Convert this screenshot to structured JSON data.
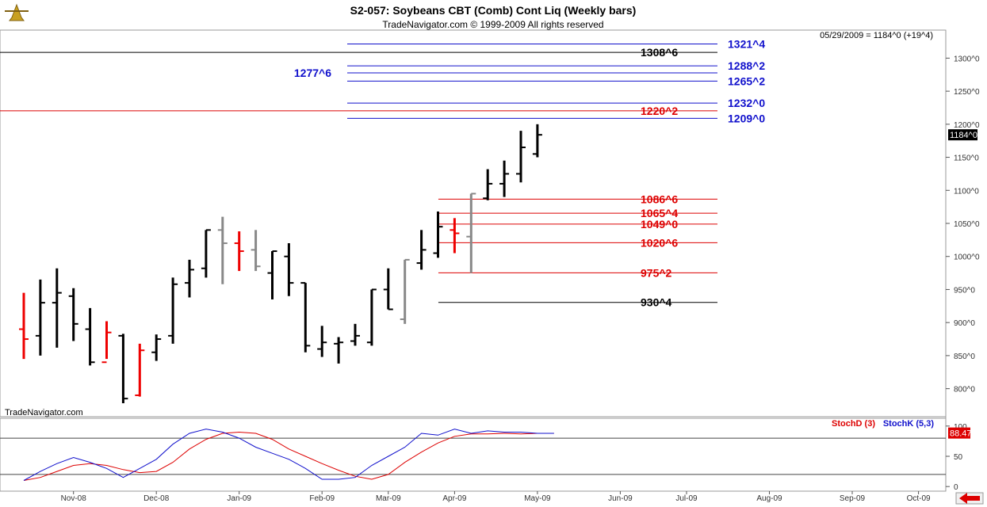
{
  "header": {
    "title": "S2-057:  Soybeans CBT (Comb) Cont Liq  (Weekly bars)",
    "subtitle": "TradeNavigator.com © 1999-2009 All rights reserved",
    "readout": "05/29/2009 = 1184^0 (+19^4)",
    "watermark": "TradeNavigator.com"
  },
  "chart_data": [
    {
      "type": "ohlc",
      "ylim": [
        760,
        1340
      ],
      "yticks": [
        {
          "v": 800,
          "label": "800^0"
        },
        {
          "v": 850,
          "label": "850^0"
        },
        {
          "v": 900,
          "label": "900^0"
        },
        {
          "v": 950,
          "label": "950^0"
        },
        {
          "v": 1000,
          "label": "1000^0"
        },
        {
          "v": 1050,
          "label": "1050^0"
        },
        {
          "v": 1100,
          "label": "1100^0"
        },
        {
          "v": 1150,
          "label": "1150^0"
        },
        {
          "v": 1200,
          "label": "1200^0"
        },
        {
          "v": 1250,
          "label": "1250^0"
        },
        {
          "v": 1300,
          "label": "1300^0"
        }
      ],
      "last_price": {
        "value": 1184,
        "label": "1184^0"
      },
      "xticks": [
        {
          "i": 3,
          "label": "Nov-08"
        },
        {
          "i": 8,
          "label": "Dec-08"
        },
        {
          "i": 13,
          "label": "Jan-09"
        },
        {
          "i": 18,
          "label": "Feb-09"
        },
        {
          "i": 22,
          "label": "Mar-09"
        },
        {
          "i": 26,
          "label": "Apr-09"
        },
        {
          "i": 31,
          "label": "May-09"
        },
        {
          "i": 36,
          "label": "Jun-09"
        },
        {
          "i": 40,
          "label": "Jul-09"
        },
        {
          "i": 45,
          "label": "Aug-09"
        },
        {
          "i": 50,
          "label": "Sep-09"
        },
        {
          "i": 54,
          "label": "Oct-09"
        }
      ],
      "x_count": 57,
      "bars": [
        {
          "o": 890,
          "h": 945,
          "l": 845,
          "c": 875,
          "col": "red"
        },
        {
          "o": 880,
          "h": 965,
          "l": 850,
          "c": 930,
          "col": "black"
        },
        {
          "o": 930,
          "h": 982,
          "l": 862,
          "c": 945,
          "col": "black"
        },
        {
          "o": 940,
          "h": 952,
          "l": 872,
          "c": 898,
          "col": "black"
        },
        {
          "o": 890,
          "h": 922,
          "l": 835,
          "c": 840,
          "col": "black"
        },
        {
          "o": 840,
          "h": 902,
          "l": 845,
          "c": 885,
          "col": "red"
        },
        {
          "o": 880,
          "h": 883,
          "l": 778,
          "c": 785,
          "col": "black"
        },
        {
          "o": 790,
          "h": 868,
          "l": 788,
          "c": 858,
          "col": "red"
        },
        {
          "o": 855,
          "h": 882,
          "l": 842,
          "c": 875,
          "col": "black"
        },
        {
          "o": 880,
          "h": 968,
          "l": 868,
          "c": 958,
          "col": "black"
        },
        {
          "o": 960,
          "h": 995,
          "l": 938,
          "c": 980,
          "col": "black"
        },
        {
          "o": 982,
          "h": 1040,
          "l": 968,
          "c": 1040,
          "col": "black"
        },
        {
          "o": 1040,
          "h": 1060,
          "l": 958,
          "c": 1020,
          "col": "gray"
        },
        {
          "o": 1020,
          "h": 1038,
          "l": 978,
          "c": 1008,
          "col": "red"
        },
        {
          "o": 1010,
          "h": 1040,
          "l": 978,
          "c": 985,
          "col": "gray"
        },
        {
          "o": 975,
          "h": 1008,
          "l": 935,
          "c": 1008,
          "col": "black"
        },
        {
          "o": 1000,
          "h": 1020,
          "l": 940,
          "c": 960,
          "col": "black"
        },
        {
          "o": 960,
          "h": 960,
          "l": 855,
          "c": 865,
          "col": "black"
        },
        {
          "o": 860,
          "h": 895,
          "l": 848,
          "c": 870,
          "col": "black"
        },
        {
          "o": 868,
          "h": 878,
          "l": 838,
          "c": 870,
          "col": "black"
        },
        {
          "o": 872,
          "h": 898,
          "l": 865,
          "c": 880,
          "col": "black"
        },
        {
          "o": 870,
          "h": 950,
          "l": 865,
          "c": 950,
          "col": "black"
        },
        {
          "o": 950,
          "h": 982,
          "l": 920,
          "c": 920,
          "col": "black"
        },
        {
          "o": 905,
          "h": 995,
          "l": 898,
          "c": 995,
          "col": "gray"
        },
        {
          "o": 990,
          "h": 1040,
          "l": 980,
          "c": 1010,
          "col": "black"
        },
        {
          "o": 1005,
          "h": 1068,
          "l": 998,
          "c": 1045,
          "col": "black"
        },
        {
          "o": 1040,
          "h": 1058,
          "l": 1005,
          "c": 1035,
          "col": "red"
        },
        {
          "o": 1030,
          "h": 1095,
          "l": 975,
          "c": 1095,
          "col": "gray"
        },
        {
          "o": 1088,
          "h": 1132,
          "l": 1085,
          "c": 1110,
          "col": "black"
        },
        {
          "o": 1110,
          "h": 1145,
          "l": 1090,
          "c": 1125,
          "col": "black"
        },
        {
          "o": 1125,
          "h": 1190,
          "l": 1112,
          "c": 1165,
          "col": "black"
        },
        {
          "o": 1155,
          "h": 1200,
          "l": 1150,
          "c": 1184,
          "col": "black"
        }
      ],
      "levels": [
        {
          "v": 1321.5,
          "label": "1321^4",
          "color": "#1010cc",
          "from": 20
        },
        {
          "v": 1308.75,
          "label": "1308^6",
          "color": "#000000",
          "from": -2
        },
        {
          "v": 1288.25,
          "label": "1288^2",
          "color": "#1010cc",
          "from": 20
        },
        {
          "v": 1277.75,
          "label": "1277^6",
          "color": "#1010cc",
          "from": 20,
          "label_left": true
        },
        {
          "v": 1265.25,
          "label": "1265^2",
          "color": "#1010cc",
          "from": 20
        },
        {
          "v": 1232.0,
          "label": "1232^0",
          "color": "#1010cc",
          "from": 20
        },
        {
          "v": 1220.25,
          "label": "1220^2",
          "color": "#dd0000",
          "from": -2
        },
        {
          "v": 1209.0,
          "label": "1209^0",
          "color": "#1010cc",
          "from": 20
        },
        {
          "v": 1086.75,
          "label": "1086^6",
          "color": "#dd0000",
          "from": 25.5
        },
        {
          "v": 1065.5,
          "label": "1065^4",
          "color": "#dd0000",
          "from": 25.5
        },
        {
          "v": 1049.0,
          "label": "1049^0",
          "color": "#dd0000",
          "from": 25.5
        },
        {
          "v": 1020.75,
          "label": "1020^6",
          "color": "#dd0000",
          "from": 25.5
        },
        {
          "v": 975.25,
          "label": "975^2",
          "color": "#dd0000",
          "from": 25.5
        },
        {
          "v": 930.5,
          "label": "930^4",
          "color": "#000000",
          "from": 25.5
        }
      ]
    },
    {
      "type": "line",
      "ylim": [
        -5,
        105
      ],
      "yticks": [
        {
          "v": 0,
          "label": "0"
        },
        {
          "v": 50,
          "label": "50"
        },
        {
          "v": 100,
          "label": "100"
        }
      ],
      "hlines": [
        20,
        80
      ],
      "last_value": {
        "value": 88.47,
        "label": "88.47"
      },
      "legend": [
        {
          "name": "StochD (3)",
          "color": "#dd0000"
        },
        {
          "name": "StochK (5,3)",
          "color": "#1010cc"
        }
      ],
      "series": [
        {
          "name": "StochD (3)",
          "color": "#dd0000",
          "values": [
            10,
            15,
            25,
            35,
            38,
            35,
            28,
            23,
            25,
            40,
            62,
            78,
            88,
            90,
            88,
            78,
            62,
            50,
            38,
            27,
            17,
            12,
            20,
            40,
            57,
            72,
            83,
            87,
            87,
            88,
            87,
            88,
            88
          ]
        },
        {
          "name": "StochK (5,3)",
          "color": "#1010cc",
          "values": [
            10,
            25,
            38,
            48,
            40,
            30,
            15,
            30,
            45,
            70,
            88,
            95,
            90,
            80,
            65,
            55,
            45,
            30,
            12,
            12,
            15,
            35,
            50,
            65,
            88,
            85,
            95,
            88,
            92,
            90,
            90,
            88,
            88
          ]
        }
      ]
    }
  ]
}
